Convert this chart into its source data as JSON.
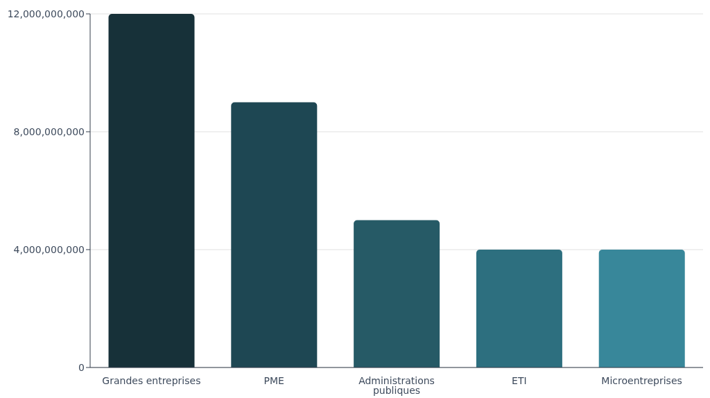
{
  "chart_data": {
    "type": "bar",
    "categories": [
      "Grandes entreprises",
      "PME",
      "Administrations publiques",
      "ETI",
      "Microentreprises"
    ],
    "values": [
      12000000000,
      9000000000,
      5000000000,
      4000000000,
      4000000000
    ],
    "colors": [
      "#173139",
      "#1e4753",
      "#265a66",
      "#2d6f7f",
      "#38879a"
    ],
    "ylim": [
      0,
      12000000000
    ],
    "yticks": [
      0,
      {
        "value": 4000000000,
        "label": "4,000,000,000"
      },
      {
        "value": 8000000000,
        "label": "8,000,000,000"
      },
      {
        "value": 12000000000,
        "label": "12,000,000,000"
      }
    ],
    "grid": "y",
    "legend": false
  }
}
